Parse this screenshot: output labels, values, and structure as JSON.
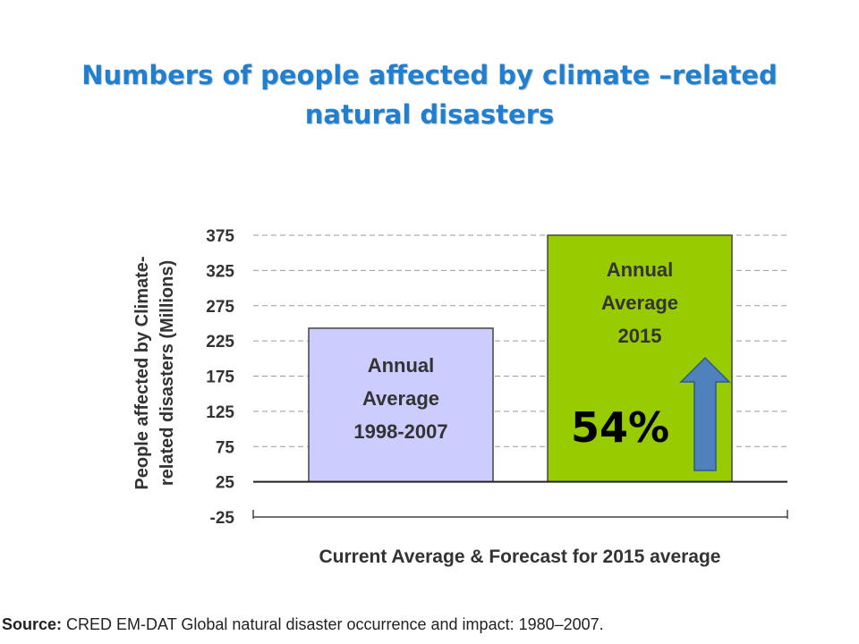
{
  "slide": {
    "title_line1": "Numbers of people affected by climate –related",
    "title_line2": "natural disasters",
    "source_label": "Source:",
    "source_text": "CRED EM-DAT Global natural disaster occurrence and impact: 1980–2007."
  },
  "chart_data": {
    "type": "bar",
    "categories": [
      "Annual Average 1998-2007",
      "Annual Average 2015"
    ],
    "bar_label_lines": [
      [
        "Annual",
        "Average",
        "1998-2007"
      ],
      [
        "Annual",
        "Average",
        "2015"
      ]
    ],
    "values": [
      243,
      375
    ],
    "bar_colors": [
      "#ccccff",
      "#99cc00"
    ],
    "ylabel_line1": "People affected by Climate-",
    "ylabel_line2": "related disasters (Millions)",
    "xlabel": "Current Average & Forecast for 2015 average",
    "ylim": [
      -25,
      375
    ],
    "yticks": [
      375,
      325,
      275,
      225,
      175,
      125,
      75,
      25,
      -25
    ],
    "grid": true,
    "annotation": {
      "text": "54%",
      "arrow_color": "#4f81bd"
    }
  }
}
